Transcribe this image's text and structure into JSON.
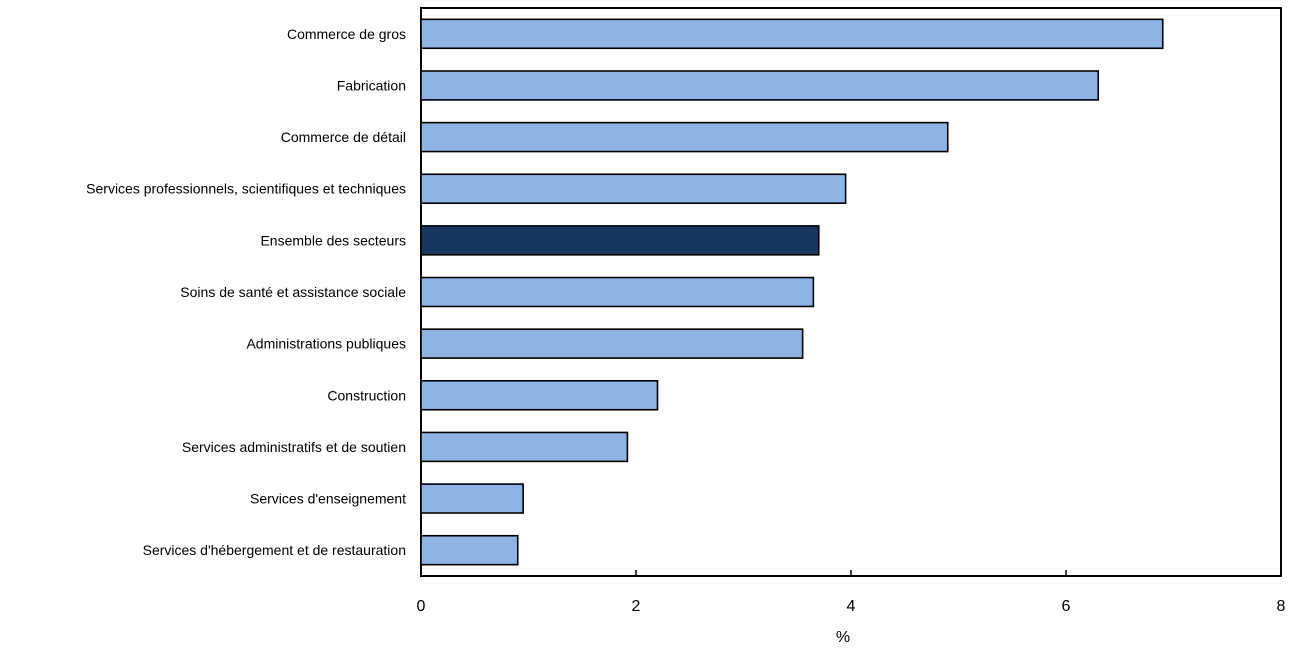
{
  "chart_data": {
    "type": "bar",
    "orientation": "horizontal",
    "title": "",
    "xlabel": "%",
    "ylabel": "",
    "xlim": [
      0,
      8
    ],
    "xticks": [
      "0",
      "2",
      "4",
      "6",
      "8"
    ],
    "grid": false,
    "legend": "none",
    "colors": {
      "bar": "#8eb4e3",
      "highlight": "#17375e",
      "outline": "#000000"
    },
    "categories": [
      "Commerce de gros",
      "Fabrication",
      "Commerce de détail",
      "Services professionnels, scientifiques et techniques",
      "Ensemble des secteurs",
      "Soins de santé et assistance sociale",
      "Administrations publiques",
      "Construction",
      "Services administratifs et de soutien",
      "Services d'enseignement",
      "Services d'hébergement et de restauration"
    ],
    "values": [
      6.9,
      6.3,
      4.9,
      3.95,
      3.7,
      3.65,
      3.55,
      2.2,
      1.92,
      0.95,
      0.9
    ],
    "highlight": [
      "Ensemble des secteurs"
    ]
  }
}
